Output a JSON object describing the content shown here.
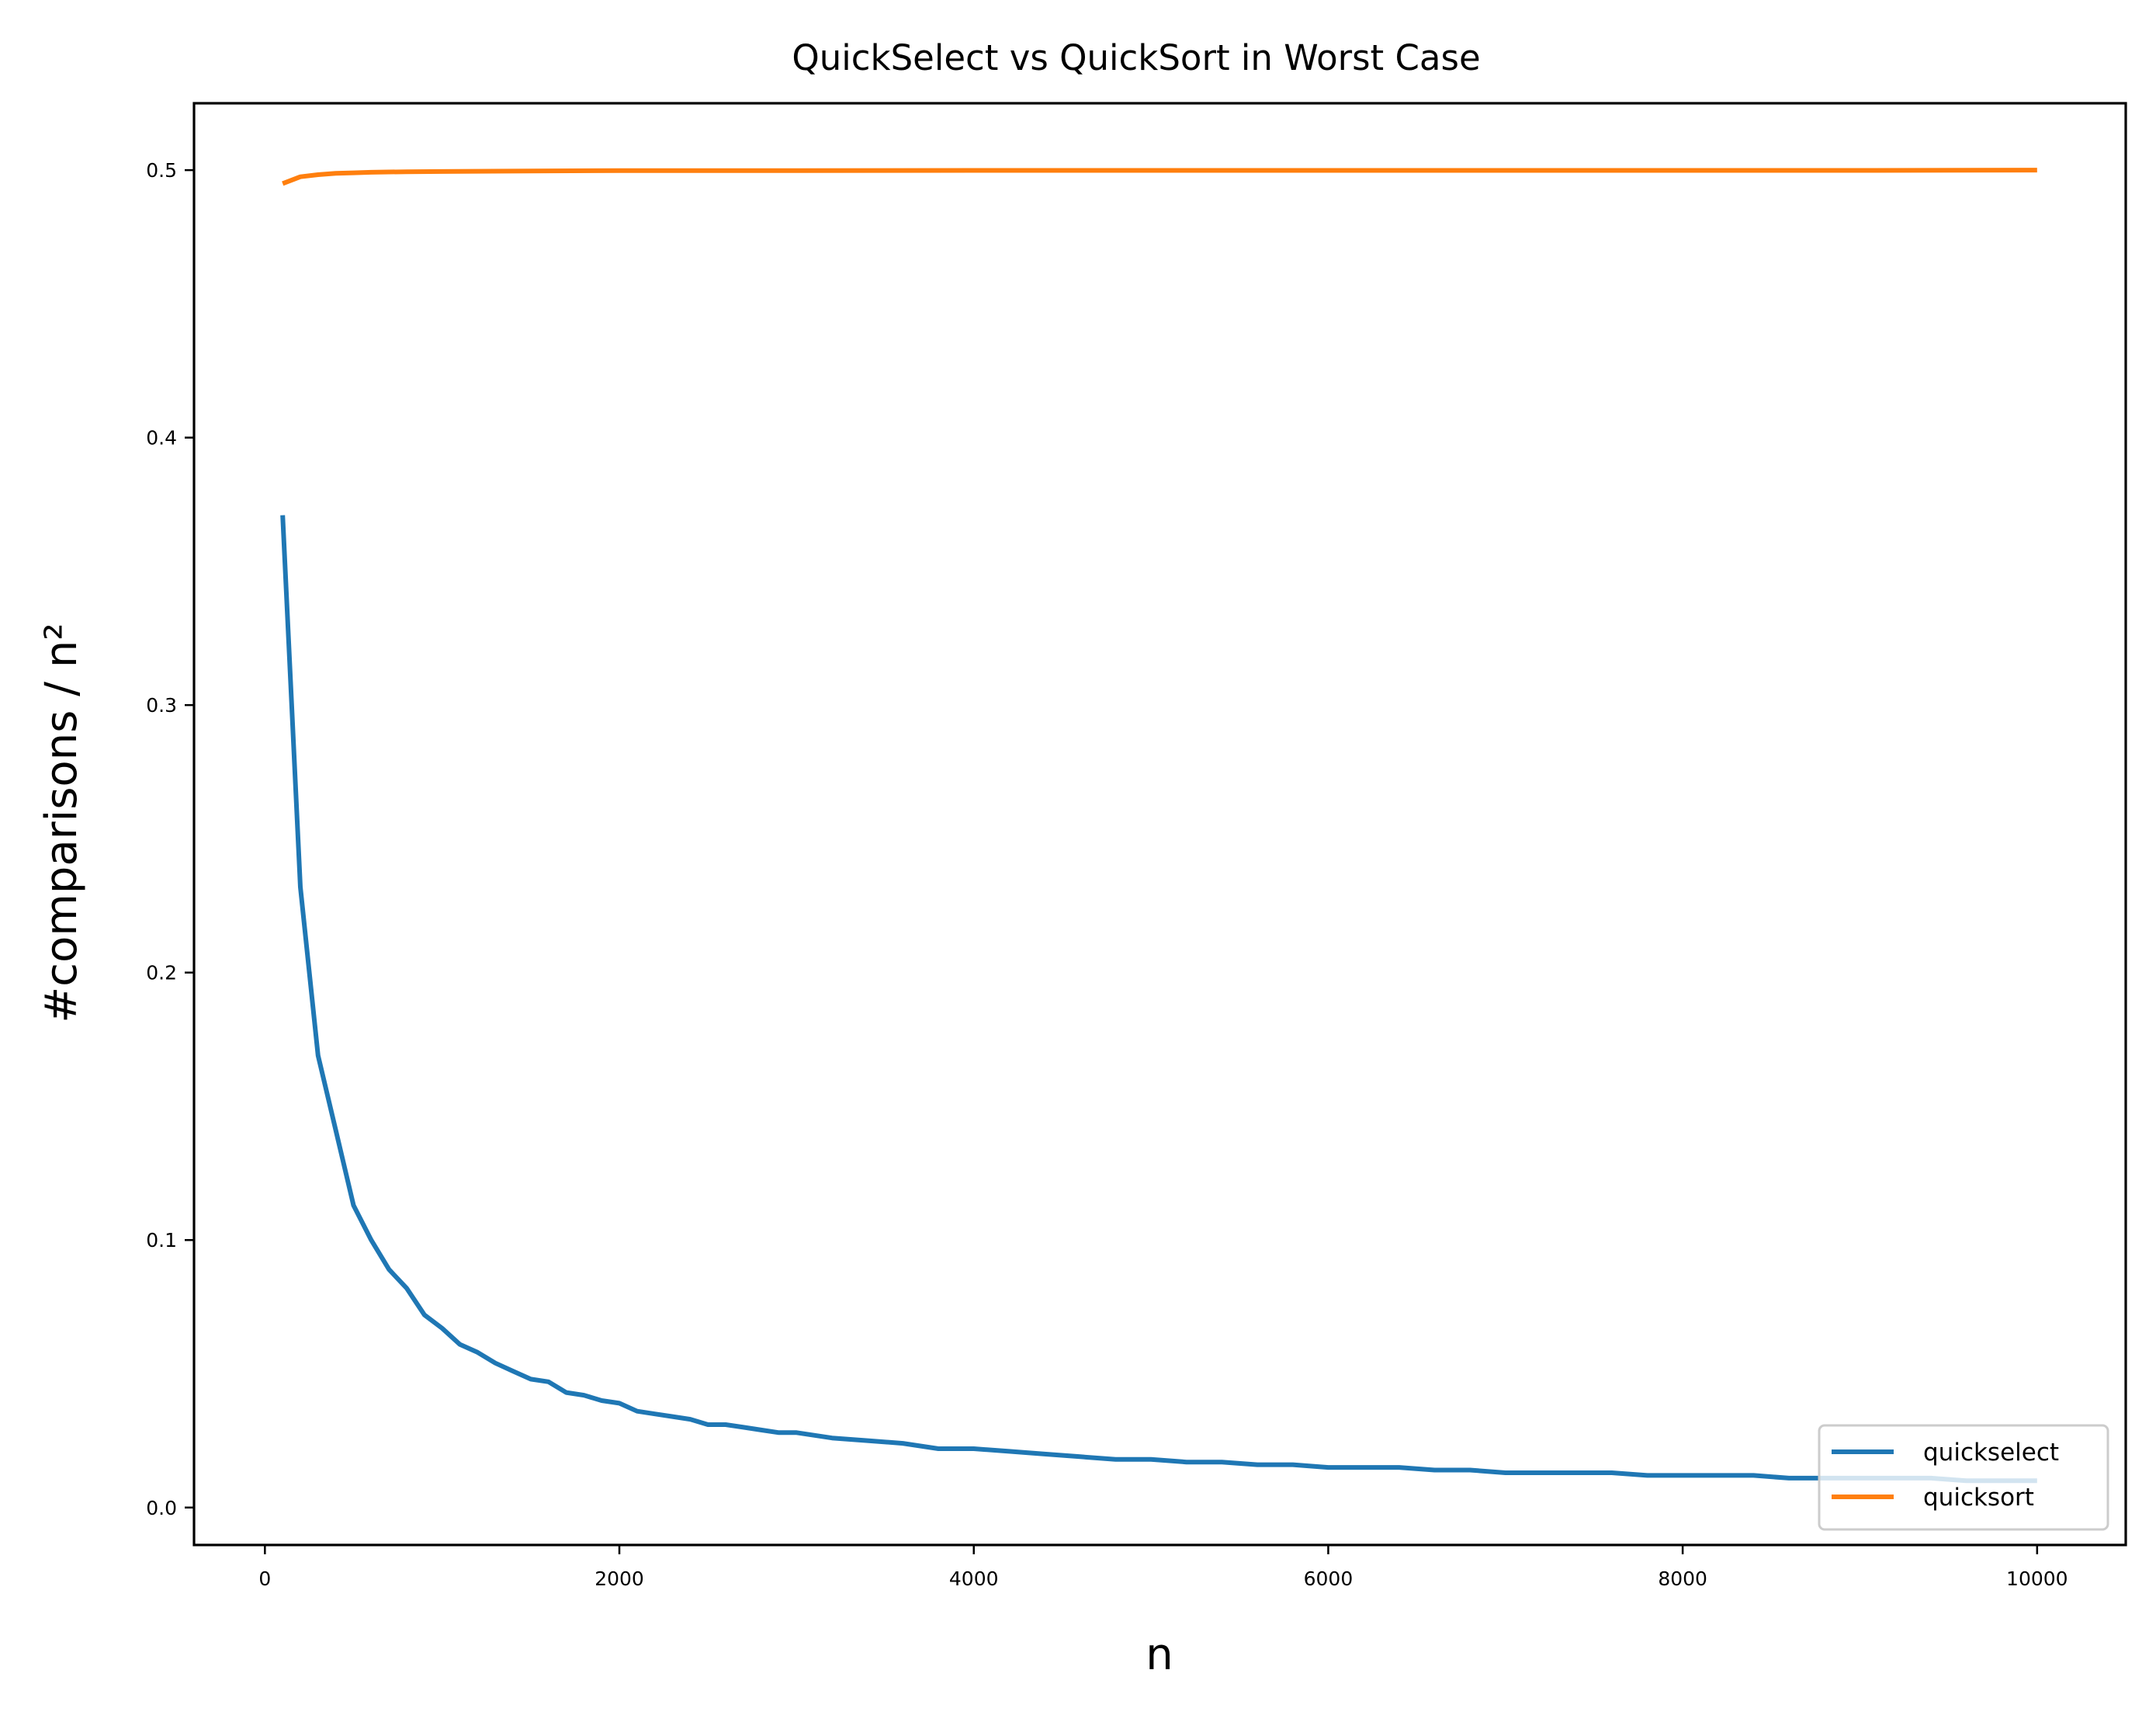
{
  "chart_data": {
    "type": "line",
    "title": "QuickSelect vs QuickSort in Worst Case",
    "xlabel": "n",
    "ylabel": "#comparisons / n²",
    "xlim": [
      -400,
      10500
    ],
    "ylim": [
      -0.014,
      0.525
    ],
    "xticks": [
      0,
      2000,
      4000,
      6000,
      8000,
      10000
    ],
    "yticks": [
      0.0,
      0.1,
      0.2,
      0.3,
      0.4,
      0.5
    ],
    "xtick_labels": [
      "0",
      "2000",
      "4000",
      "6000",
      "8000",
      "10000"
    ],
    "ytick_labels": [
      "0.0",
      "0.1",
      "0.2",
      "0.3",
      "0.4",
      "0.5"
    ],
    "legend_position": "lower-right",
    "grid": false,
    "series": [
      {
        "name": "quickselect",
        "color": "#1f77b4",
        "x": [
          100,
          200,
          300,
          400,
          500,
          600,
          700,
          800,
          900,
          1000,
          1100,
          1200,
          1300,
          1400,
          1500,
          1600,
          1700,
          1800,
          1900,
          2000,
          2100,
          2200,
          2300,
          2400,
          2500,
          2600,
          2700,
          2800,
          2900,
          3000,
          3200,
          3400,
          3600,
          3800,
          4000,
          4200,
          4400,
          4600,
          4800,
          5000,
          5200,
          5400,
          5600,
          5800,
          6000,
          6200,
          6400,
          6600,
          6800,
          7000,
          7200,
          7400,
          7600,
          7800,
          8000,
          8200,
          8400,
          8600,
          8800,
          9000,
          9200,
          9400,
          9600,
          9800,
          10000
        ],
        "values": [
          0.371,
          0.232,
          0.169,
          0.141,
          0.113,
          0.1,
          0.089,
          0.082,
          0.072,
          0.067,
          0.061,
          0.058,
          0.054,
          0.051,
          0.048,
          0.047,
          0.043,
          0.042,
          0.04,
          0.039,
          0.036,
          0.035,
          0.034,
          0.033,
          0.031,
          0.031,
          0.03,
          0.029,
          0.028,
          0.028,
          0.026,
          0.025,
          0.024,
          0.022,
          0.022,
          0.021,
          0.02,
          0.019,
          0.018,
          0.018,
          0.017,
          0.017,
          0.016,
          0.016,
          0.015,
          0.015,
          0.015,
          0.014,
          0.014,
          0.013,
          0.013,
          0.013,
          0.013,
          0.012,
          0.012,
          0.012,
          0.012,
          0.011,
          0.011,
          0.011,
          0.011,
          0.011,
          0.01,
          0.01,
          0.01
        ]
      },
      {
        "name": "quicksort",
        "color": "#ff7f0e",
        "x": [
          100,
          200,
          300,
          400,
          500,
          600,
          800,
          1000,
          1500,
          2000,
          3000,
          4000,
          5000,
          6000,
          7000,
          8000,
          9000,
          10000
        ],
        "values": [
          0.495,
          0.4975,
          0.4983,
          0.4988,
          0.499,
          0.4992,
          0.4994,
          0.4995,
          0.4997,
          0.4998,
          0.4998,
          0.4999,
          0.4999,
          0.4999,
          0.4999,
          0.4999,
          0.4999,
          0.5
        ]
      }
    ]
  }
}
